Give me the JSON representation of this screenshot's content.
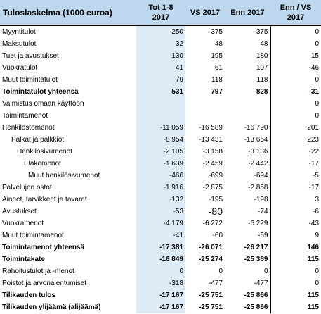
{
  "header": {
    "title": "Tuloslaskelma (1000 euroa)",
    "col1": "Tot 1-8\n2017",
    "col2": "VS 2017",
    "col3": "Enn 2017",
    "col4": "Enn / VS\n2017"
  },
  "rows": [
    {
      "label": "Myyntitulot",
      "indent": 0,
      "bold": false,
      "v": [
        "250",
        "375",
        "375",
        "0"
      ]
    },
    {
      "label": "Maksutulot",
      "indent": 0,
      "bold": false,
      "v": [
        "32",
        "48",
        "48",
        "0"
      ]
    },
    {
      "label": "Tuet ja avustukset",
      "indent": 0,
      "bold": false,
      "v": [
        "130",
        "195",
        "180",
        "15"
      ]
    },
    {
      "label": "Vuokratulot",
      "indent": 0,
      "bold": false,
      "v": [
        "41",
        "61",
        "107",
        "-46"
      ]
    },
    {
      "label": "Muut toimintatulot",
      "indent": 0,
      "bold": false,
      "v": [
        "79",
        "118",
        "118",
        "0"
      ]
    },
    {
      "label": "Toimintatulot yhteensä",
      "indent": 0,
      "bold": true,
      "v": [
        "531",
        "797",
        "828",
        "-31"
      ]
    },
    {
      "label": "Valmistus omaan käyttöön",
      "indent": 0,
      "bold": false,
      "v": [
        "",
        "",
        "",
        "0"
      ]
    },
    {
      "label": "Toimintamenot",
      "indent": 0,
      "bold": false,
      "v": [
        "",
        "",
        "",
        "0"
      ]
    },
    {
      "label": "Henkilöstömenot",
      "indent": 0,
      "bold": false,
      "v": [
        "-11 059",
        "-16 589",
        "-16 790",
        "201"
      ]
    },
    {
      "label": "Palkat ja palkkiot",
      "indent": 1,
      "bold": false,
      "v": [
        "-8 954",
        "-13 431",
        "-13 654",
        "223"
      ]
    },
    {
      "label": "Henkilösivumenot",
      "indent": 2,
      "bold": false,
      "v": [
        "-2 105",
        "-3 158",
        "-3 136",
        "-22"
      ]
    },
    {
      "label": "Eläkemenot",
      "indent": 3,
      "bold": false,
      "v": [
        "-1 639",
        "-2 459",
        "-2 442",
        "-17"
      ]
    },
    {
      "label": "Muut henkilösivumenot",
      "indent": 4,
      "bold": false,
      "v": [
        "-466",
        "-699",
        "-694",
        "-5"
      ]
    },
    {
      "label": "Palvelujen ostot",
      "indent": 0,
      "bold": false,
      "v": [
        "-1 916",
        "-2 875",
        "-2 858",
        "-17"
      ]
    },
    {
      "label": "Aineet, tarvikkeet ja tavarat",
      "indent": 0,
      "bold": false,
      "v": [
        "-132",
        "-195",
        "-198",
        "3"
      ]
    },
    {
      "label": "Avustukset",
      "indent": 0,
      "bold": false,
      "big": true,
      "v": [
        "-53",
        "-80",
        "-74",
        "-6"
      ]
    },
    {
      "label": "Vuokramenot",
      "indent": 0,
      "bold": false,
      "v": [
        "-4 179",
        "-6 272",
        "-6 229",
        "-43"
      ]
    },
    {
      "label": "Muut toimintamenot",
      "indent": 0,
      "bold": false,
      "v": [
        "-41",
        "-60",
        "-69",
        "9"
      ]
    },
    {
      "label": "Toimintamenot yhteensä",
      "indent": 0,
      "bold": true,
      "v": [
        "-17 381",
        "-26 071",
        "-26 217",
        "146"
      ]
    },
    {
      "label": "Toimintakate",
      "indent": 0,
      "bold": true,
      "v": [
        "-16 849",
        "-25 274",
        "-25 389",
        "115"
      ]
    },
    {
      "label": "Rahoitustulot ja -menot",
      "indent": 0,
      "bold": false,
      "v": [
        "0",
        "0",
        "0",
        "0"
      ]
    },
    {
      "label": "Poistot ja arvonalentumiset",
      "indent": 0,
      "bold": false,
      "v": [
        "-318",
        "-477",
        "-477",
        "0"
      ]
    },
    {
      "label": "Tilikauden tulos",
      "indent": 0,
      "bold": true,
      "v": [
        "-17 167",
        "-25 751",
        "-25 866",
        "115"
      ]
    },
    {
      "label": "Tilikauden ylijäämä (alijäämä)",
      "indent": 0,
      "bold": true,
      "v": [
        "-17 167",
        "-25 751",
        "-25 866",
        "115"
      ]
    }
  ]
}
